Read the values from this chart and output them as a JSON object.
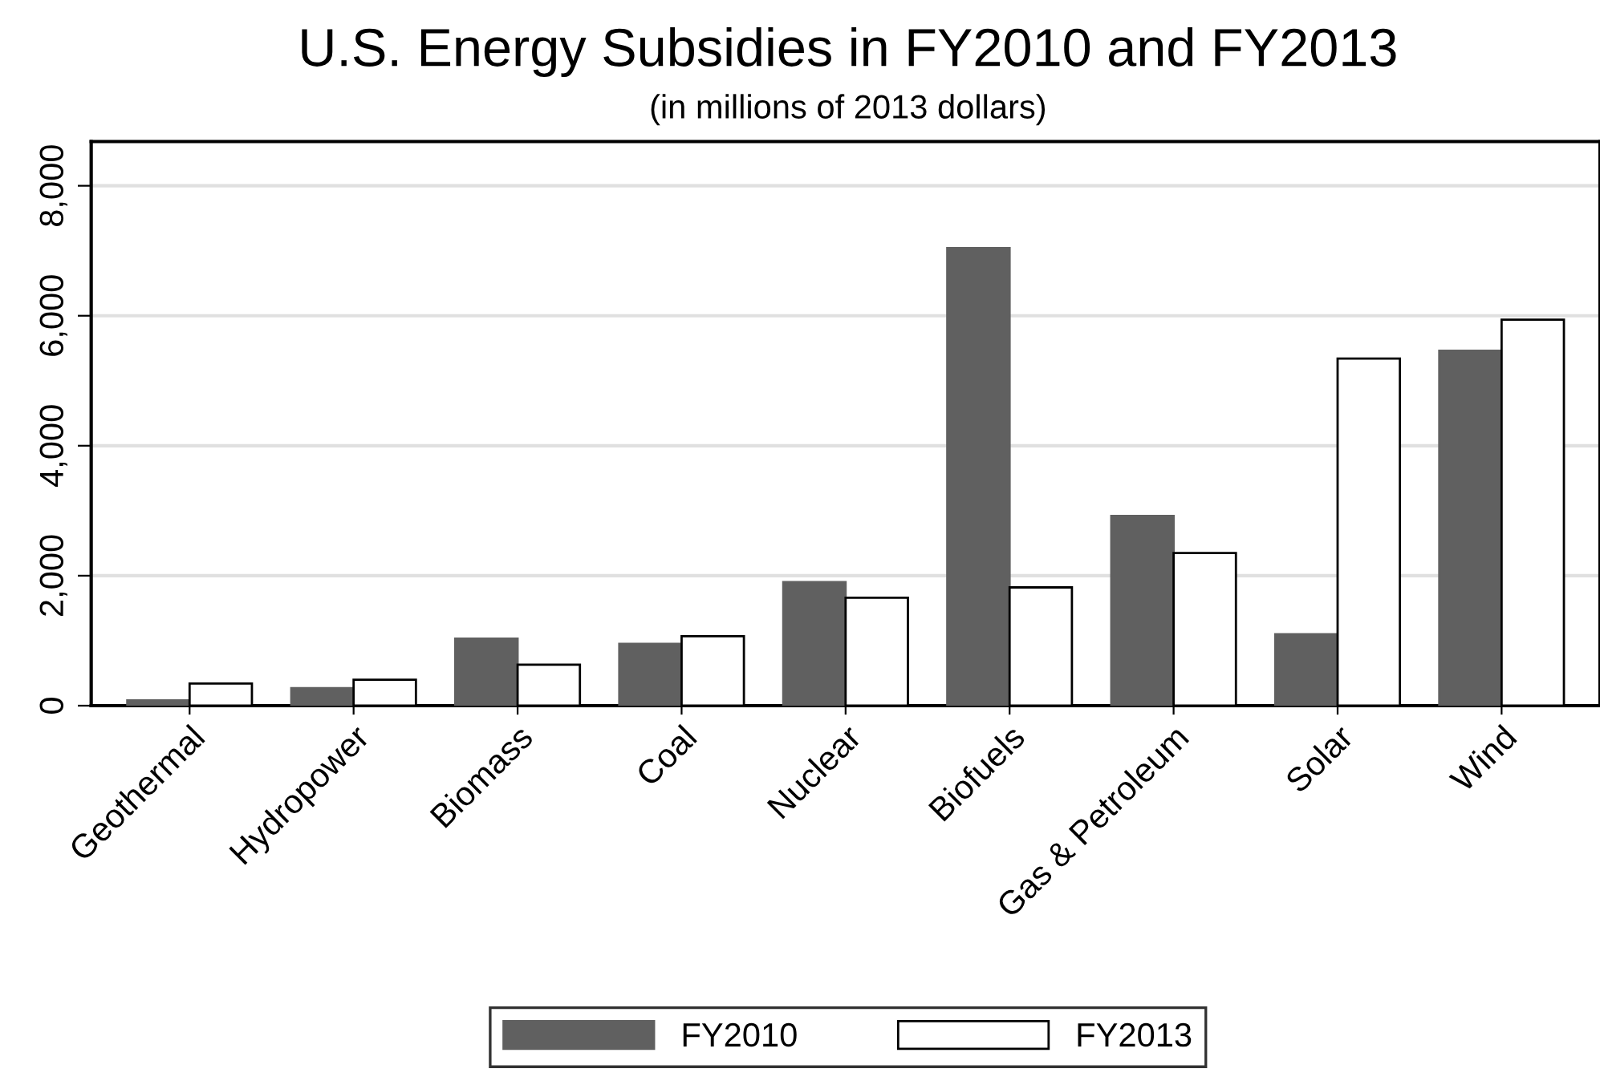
{
  "chart_data": {
    "type": "bar",
    "title": "U.S. Energy Subsidies in FY2010 and FY2013",
    "subtitle": "(in millions of 2013 dollars)",
    "categories": [
      "Geothermal",
      "Hydropower",
      "Biomass",
      "Coal",
      "Nuclear",
      "Biofuels",
      "Gas & Petroleum",
      "Solar",
      "Wind"
    ],
    "series": [
      {
        "name": "FY2010",
        "color": "#606060",
        "values": [
          80,
          270,
          1030,
          950,
          1900,
          7040,
          2920,
          1100,
          5460
        ]
      },
      {
        "name": "FY2013",
        "color": "#ffffff",
        "values": [
          340,
          400,
          630,
          1070,
          1660,
          1820,
          2350,
          5340,
          5940
        ]
      }
    ],
    "ylim": [
      0,
      8680
    ],
    "yticks": [
      {
        "value": 0,
        "label": "0"
      },
      {
        "value": 2000,
        "label": "2,000"
      },
      {
        "value": 4000,
        "label": "4,000"
      },
      {
        "value": 6000,
        "label": "6,000"
      },
      {
        "value": 8000,
        "label": "8,000"
      }
    ],
    "grid": "y",
    "legend": "bottom"
  }
}
